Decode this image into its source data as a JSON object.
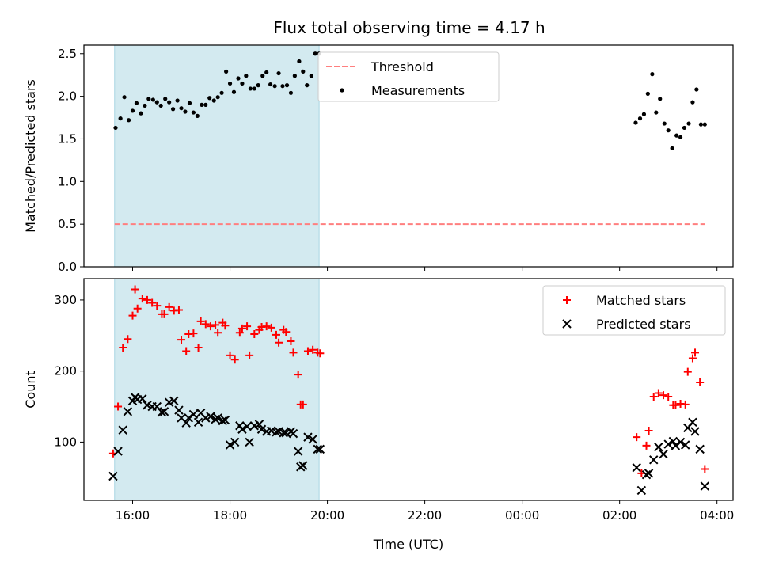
{
  "chart_data": {
    "type": "scatter",
    "title": "Flux total observing time = 4.17 h",
    "xlabel": "Time (UTC)",
    "x_ticks": [
      "16:00",
      "18:00",
      "20:00",
      "22:00",
      "00:00",
      "02:00",
      "04:00"
    ],
    "x_tick_hours": [
      16,
      18,
      20,
      22,
      24,
      26,
      28
    ],
    "xlim_hours": [
      15.0,
      28.33
    ],
    "shaded_span_hours": [
      15.63,
      19.83
    ],
    "colors": {
      "shade": "#d3eaf0",
      "threshold": "#ff7f7f",
      "measurements": "#000000",
      "matched": "#ff0000",
      "predicted": "#000000"
    },
    "panels": [
      {
        "ylabel": "Matched/Predicted stars",
        "ylim": [
          0,
          2.6
        ],
        "y_ticks": [
          0.0,
          0.5,
          1.0,
          1.5,
          2.0,
          2.5
        ],
        "y_tick_labels": [
          "0.0",
          "0.5",
          "1.0",
          "1.5",
          "2.0",
          "2.5"
        ],
        "legend_position": "upper-center",
        "series": [
          {
            "name": "Threshold",
            "kind": "dashed-line",
            "x": [
              15.63,
              27.75
            ],
            "y": [
              0.5,
              0.5
            ]
          },
          {
            "name": "Measurements",
            "kind": "dot",
            "x": [
              15.65,
              15.75,
              15.83,
              15.92,
              16.0,
              16.08,
              16.17,
              16.25,
              16.33,
              16.42,
              16.5,
              16.58,
              16.67,
              16.75,
              16.83,
              16.92,
              17.0,
              17.08,
              17.17,
              17.25,
              17.33,
              17.42,
              17.5,
              17.58,
              17.67,
              17.75,
              17.83,
              17.92,
              18.0,
              18.08,
              18.17,
              18.25,
              18.33,
              18.42,
              18.5,
              18.58,
              18.67,
              18.75,
              18.83,
              18.92,
              19.0,
              19.08,
              19.17,
              19.25,
              19.33,
              19.42,
              19.5,
              19.58,
              19.67,
              19.75,
              19.83,
              26.33,
              26.42,
              26.5,
              26.58,
              26.67,
              26.75,
              26.83,
              26.92,
              27.0,
              27.08,
              27.17,
              27.25,
              27.33,
              27.42,
              27.5,
              27.58,
              27.67,
              27.75
            ],
            "y": [
              1.63,
              1.74,
              1.99,
              1.72,
              1.83,
              1.92,
              1.8,
              1.89,
              1.97,
              1.96,
              1.93,
              1.89,
              1.97,
              1.93,
              1.85,
              1.95,
              1.86,
              1.82,
              1.92,
              1.81,
              1.77,
              1.9,
              1.9,
              1.98,
              1.95,
              1.99,
              2.04,
              2.29,
              2.15,
              2.05,
              2.21,
              2.15,
              2.24,
              2.09,
              2.09,
              2.13,
              2.24,
              2.28,
              2.14,
              2.12,
              2.27,
              2.12,
              2.13,
              2.04,
              2.24,
              2.41,
              2.29,
              2.13,
              2.24,
              2.5,
              2.5,
              1.69,
              1.74,
              1.79,
              2.03,
              2.26,
              1.81,
              1.97,
              1.68,
              1.6,
              1.39,
              1.54,
              1.52,
              1.63,
              1.68,
              1.93,
              2.08,
              1.67,
              1.67
            ]
          }
        ]
      },
      {
        "ylabel": "Count",
        "ylim": [
          18,
          330
        ],
        "y_ticks": [
          100,
          200,
          300
        ],
        "y_tick_labels": [
          "100",
          "200",
          "300"
        ],
        "legend_position": "upper-right",
        "series": [
          {
            "name": "Matched stars",
            "kind": "plus",
            "x": [
              15.6,
              15.7,
              15.8,
              15.9,
              16.0,
              16.05,
              16.1,
              16.2,
              16.3,
              16.4,
              16.5,
              16.6,
              16.65,
              16.75,
              16.85,
              16.95,
              17.0,
              17.1,
              17.15,
              17.25,
              17.35,
              17.4,
              17.5,
              17.6,
              17.7,
              17.75,
              17.85,
              17.9,
              18.0,
              18.1,
              18.2,
              18.25,
              18.35,
              18.4,
              18.5,
              18.6,
              18.65,
              18.75,
              18.85,
              18.95,
              19.0,
              19.1,
              19.15,
              19.25,
              19.3,
              19.4,
              19.45,
              19.5,
              19.6,
              19.7,
              19.8,
              19.85,
              26.35,
              26.45,
              26.55,
              26.6,
              26.7,
              26.8,
              26.9,
              27.0,
              27.1,
              27.15,
              27.25,
              27.35,
              27.4,
              27.5,
              27.55,
              27.65,
              27.75
            ],
            "y": [
              84,
              150,
              233,
              245,
              278,
              315,
              288,
              302,
              300,
              296,
              292,
              280,
              280,
              290,
              285,
              286,
              244,
              228,
              252,
              253,
              233,
              270,
              266,
              263,
              265,
              254,
              268,
              264,
              222,
              216,
              254,
              260,
              263,
              222,
              252,
              258,
              262,
              263,
              261,
              251,
              240,
              258,
              255,
              242,
              226,
              195,
              153,
              153,
              228,
              230,
              226,
              225,
              107,
              56,
              95,
              116,
              164,
              169,
              166,
              164,
              152,
              152,
              154,
              153,
              199,
              218,
              226,
              184,
              62
            ]
          },
          {
            "name": "Predicted stars",
            "kind": "x",
            "x": [
              15.6,
              15.7,
              15.8,
              15.9,
              16.0,
              16.05,
              16.1,
              16.2,
              16.3,
              16.4,
              16.5,
              16.6,
              16.65,
              16.75,
              16.85,
              16.95,
              17.0,
              17.1,
              17.15,
              17.25,
              17.35,
              17.4,
              17.5,
              17.6,
              17.7,
              17.75,
              17.85,
              17.9,
              18.0,
              18.1,
              18.2,
              18.25,
              18.35,
              18.4,
              18.5,
              18.6,
              18.65,
              18.75,
              18.85,
              18.95,
              19.0,
              19.1,
              19.15,
              19.25,
              19.3,
              19.4,
              19.45,
              19.5,
              19.6,
              19.7,
              19.8,
              19.85,
              26.35,
              26.45,
              26.55,
              26.6,
              26.7,
              26.8,
              26.9,
              27.0,
              27.1,
              27.15,
              27.25,
              27.35,
              27.4,
              27.5,
              27.55,
              27.65,
              27.75
            ],
            "y": [
              52,
              87,
              117,
              143,
              158,
              163,
              160,
              161,
              152,
              150,
              150,
              142,
              143,
              156,
              158,
              145,
              134,
              127,
              134,
              139,
              128,
              141,
              134,
              136,
              132,
              134,
              130,
              131,
              96,
              100,
              123,
              118,
              122,
              100,
              123,
              125,
              118,
              115,
              116,
              114,
              115,
              113,
              113,
              115,
              112,
              87,
              65,
              67,
              107,
              104,
              90,
              90,
              64,
              32,
              54,
              56,
              75,
              93,
              83,
              97,
              101,
              95,
              100,
              96,
              120,
              128,
              115,
              90,
              38
            ]
          }
        ]
      }
    ]
  }
}
